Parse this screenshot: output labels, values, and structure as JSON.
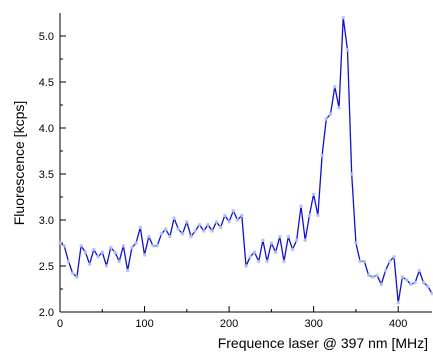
{
  "chart_data": {
    "type": "line",
    "title": "",
    "xlabel": "Frequence laser @ 397 nm [MHz]",
    "ylabel": "Fluorescence [kcps]",
    "xlim": [
      0,
      440
    ],
    "ylim": [
      2.0,
      5.25
    ],
    "xticks": [
      0,
      100,
      200,
      300,
      400
    ],
    "yticks": [
      2.0,
      2.5,
      3.0,
      3.5,
      4.0,
      4.5,
      5.0
    ],
    "grid": false,
    "legend": "none",
    "colors": {
      "line": "#1010d0",
      "marker": "#b8c8f0",
      "axis": "#000000"
    },
    "series": [
      {
        "x": [
          0,
          5,
          10,
          15,
          20,
          25,
          30,
          35,
          40,
          45,
          50,
          55,
          60,
          65,
          70,
          75,
          80,
          85,
          90,
          95,
          100,
          105,
          110,
          115,
          120,
          125,
          130,
          135,
          140,
          145,
          150,
          155,
          160,
          165,
          170,
          175,
          180,
          185,
          190,
          195,
          200,
          205,
          210,
          215,
          220,
          225,
          230,
          235,
          240,
          245,
          250,
          255,
          260,
          265,
          270,
          275,
          280,
          285,
          290,
          295,
          300,
          305,
          310,
          315,
          320,
          325,
          330,
          335,
          340,
          345,
          350,
          355,
          360,
          365,
          370,
          375,
          380,
          385,
          390,
          395,
          400,
          405,
          410,
          415,
          420,
          425,
          430,
          435,
          440
        ],
        "y": [
          2.75,
          2.72,
          2.55,
          2.42,
          2.38,
          2.72,
          2.65,
          2.52,
          2.68,
          2.6,
          2.65,
          2.5,
          2.7,
          2.65,
          2.55,
          2.72,
          2.45,
          2.7,
          2.75,
          2.92,
          2.62,
          2.82,
          2.72,
          2.72,
          2.85,
          2.9,
          2.82,
          3.02,
          2.9,
          2.85,
          2.98,
          2.82,
          2.88,
          2.95,
          2.88,
          2.95,
          2.88,
          2.98,
          2.92,
          3.05,
          2.98,
          3.1,
          3.0,
          3.05,
          2.5,
          2.6,
          2.65,
          2.55,
          2.78,
          2.55,
          2.75,
          2.65,
          2.82,
          2.55,
          2.82,
          2.68,
          2.78,
          3.15,
          2.78,
          3.05,
          3.28,
          3.05,
          3.7,
          4.1,
          4.15,
          4.45,
          4.22,
          5.2,
          4.85,
          3.5,
          2.75,
          2.55,
          2.55,
          2.4,
          2.38,
          2.4,
          2.3,
          2.45,
          2.55,
          2.6,
          2.1,
          2.38,
          2.35,
          2.3,
          2.32,
          2.45,
          2.32,
          2.28,
          2.2
        ]
      }
    ]
  }
}
